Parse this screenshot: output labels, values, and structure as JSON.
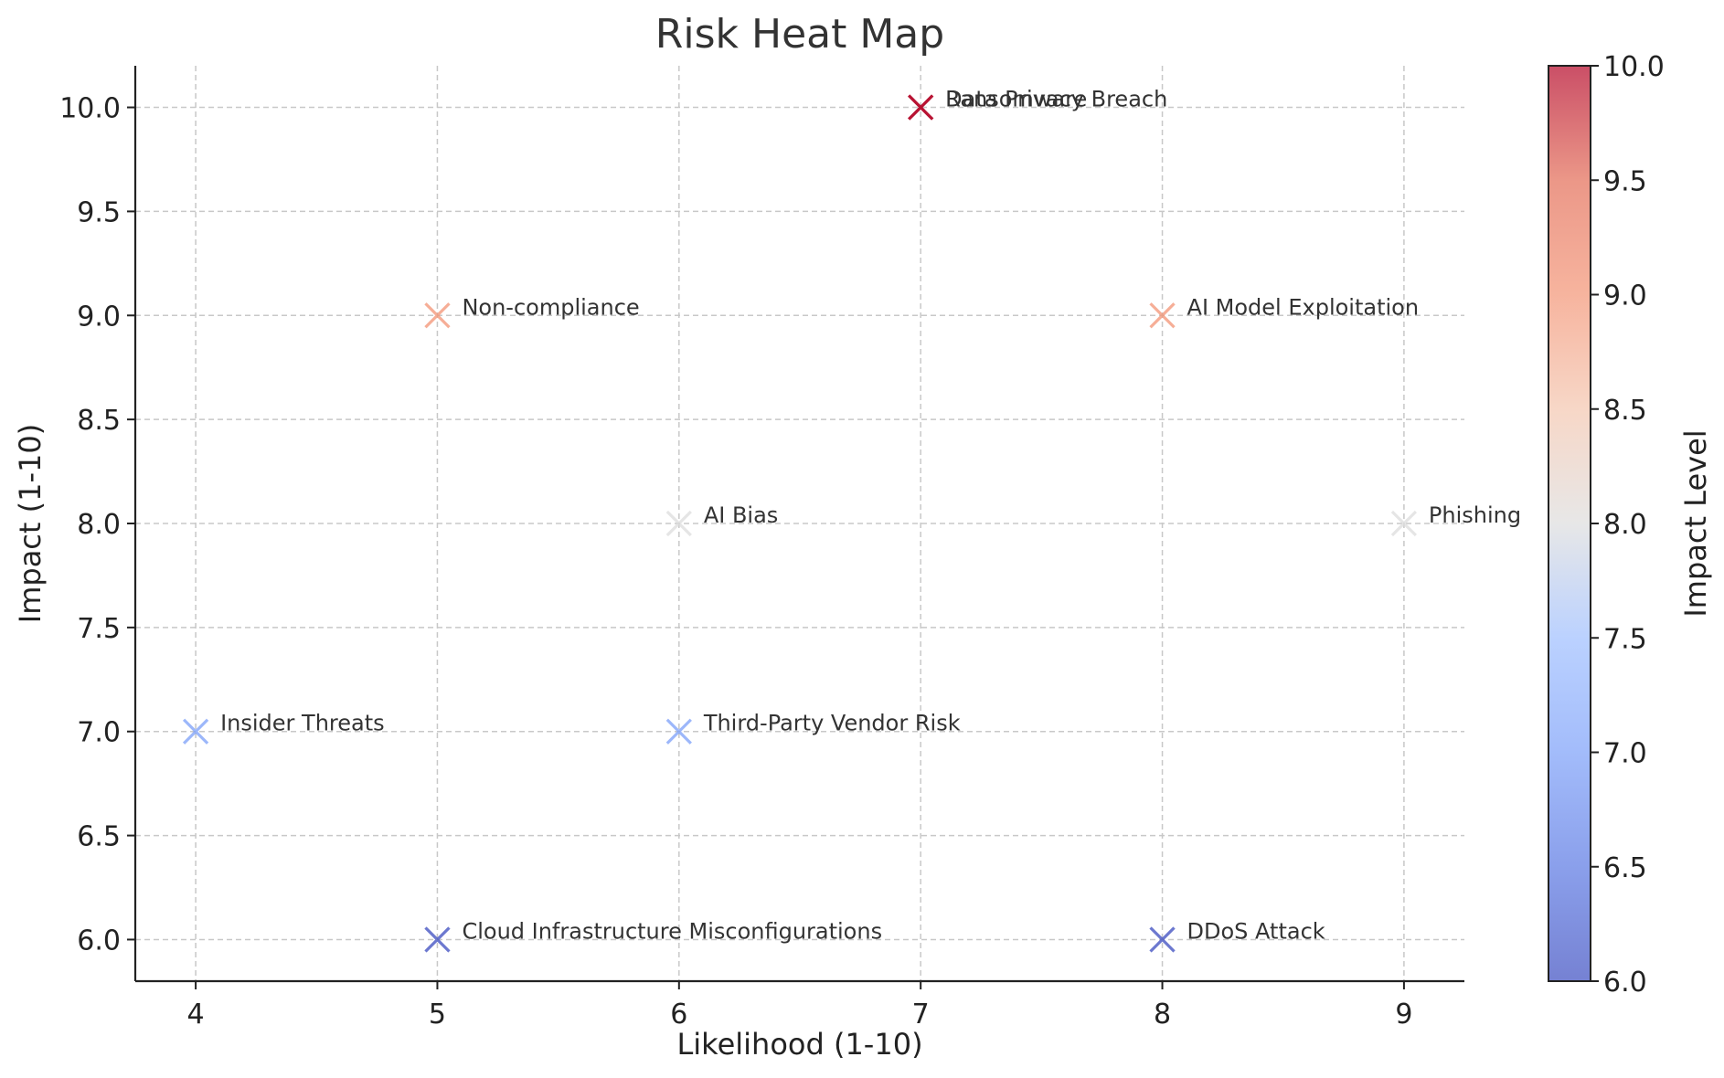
{
  "chart_data": {
    "type": "scatter",
    "title": "Risk Heat Map",
    "xlabel": "Likelihood (1-10)",
    "ylabel": "Impact (1-10)",
    "xlim": [
      3.75,
      9.25
    ],
    "ylim": [
      5.8,
      10.2
    ],
    "x_ticks": [
      "4",
      "5",
      "6",
      "7",
      "8",
      "9"
    ],
    "y_ticks": [
      "6.0",
      "6.5",
      "7.0",
      "7.5",
      "8.0",
      "8.5",
      "9.0",
      "9.5",
      "10.0"
    ],
    "grid": true,
    "marker": "x",
    "colormap": "coolwarm",
    "colorbar": {
      "label": "Impact Level",
      "range": [
        6.0,
        10.0
      ],
      "ticks": [
        "6.0",
        "6.5",
        "7.0",
        "7.5",
        "8.0",
        "8.5",
        "9.0",
        "9.5",
        "10.0"
      ]
    },
    "points": [
      {
        "label": "Data Privacy Breach",
        "x": 7,
        "y": 10
      },
      {
        "label": "Ransomware",
        "x": 7,
        "y": 10
      },
      {
        "label": "Non-compliance",
        "x": 5,
        "y": 9
      },
      {
        "label": "AI Model Exploitation",
        "x": 8,
        "y": 9
      },
      {
        "label": "AI Bias",
        "x": 6,
        "y": 8
      },
      {
        "label": "Phishing",
        "x": 9,
        "y": 8
      },
      {
        "label": "Insider Threats",
        "x": 4,
        "y": 7
      },
      {
        "label": "Third-Party Vendor Risk",
        "x": 6,
        "y": 7
      },
      {
        "label": "Cloud Infrastructure Misconfigurations",
        "x": 5,
        "y": 6
      },
      {
        "label": "DDoS Attack",
        "x": 8,
        "y": 6
      }
    ]
  }
}
